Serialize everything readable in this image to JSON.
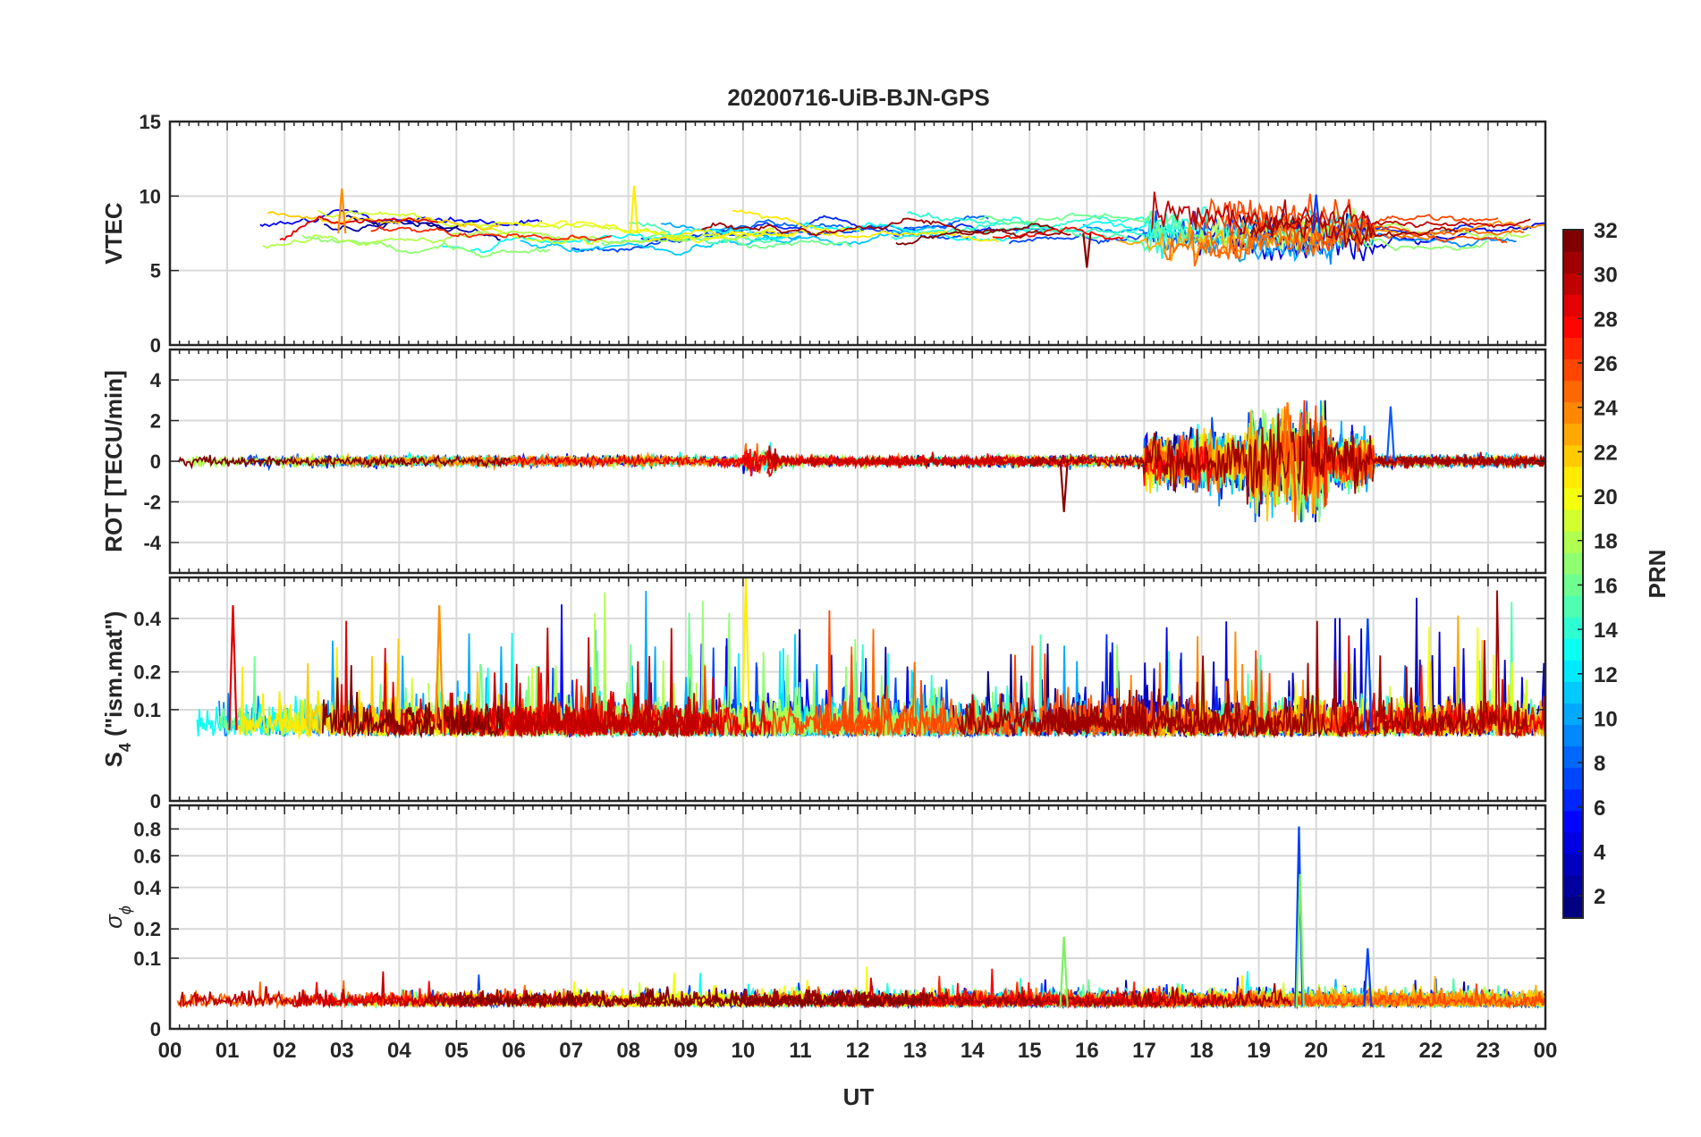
{
  "figure": {
    "title": "20200716-UiB-BJN-GPS",
    "x_axis": {
      "label": "UT",
      "range_hours": [
        0,
        24
      ],
      "tick_labels": [
        "00",
        "01",
        "02",
        "03",
        "04",
        "05",
        "06",
        "07",
        "08",
        "09",
        "10",
        "11",
        "12",
        "13",
        "14",
        "15",
        "16",
        "17",
        "18",
        "19",
        "20",
        "21",
        "22",
        "23",
        "00"
      ]
    },
    "colorbar": {
      "label": "PRN",
      "range": [
        1,
        32
      ],
      "tick_labels": [
        "2",
        "4",
        "6",
        "8",
        "10",
        "12",
        "14",
        "16",
        "18",
        "20",
        "22",
        "24",
        "26",
        "28",
        "30",
        "32"
      ],
      "colormap": "jet"
    }
  },
  "chart_data": [
    {
      "type": "line",
      "panel": "vtec",
      "ylabel": "VTEC",
      "ylim": [
        0,
        15
      ],
      "yticks": [
        "0",
        "5",
        "10",
        "15"
      ],
      "grid": true,
      "series_count": 32,
      "typical_range": [
        5,
        10.5
      ],
      "features": [
        {
          "x_hours": 3.0,
          "y": 10.5,
          "note": "orange peak"
        },
        {
          "x_hours": 8.1,
          "y": 10.7,
          "note": "yellow-green arc start"
        },
        {
          "x_hours": 16.0,
          "y": 5.2,
          "note": "dark red dip"
        },
        {
          "x_hours": 20.0,
          "y": 10.1,
          "note": "blue peak"
        }
      ]
    },
    {
      "type": "line",
      "panel": "rot",
      "ylabel": "ROT [TECU/min]",
      "ylim": [
        -5.5,
        5.5
      ],
      "yticks": [
        "-4",
        "-2",
        "0",
        "2",
        "4"
      ],
      "grid": true,
      "series_count": 32,
      "features": [
        {
          "x_hours": 19.5,
          "y": 2.9,
          "note": "max spike"
        },
        {
          "x_hours": 19.7,
          "y": -2.9,
          "note": "min spike"
        },
        {
          "x_hours": 15.6,
          "y": -2.5,
          "note": "negative spike"
        },
        {
          "x_hours": 21.3,
          "y": 2.7,
          "note": "spike"
        }
      ]
    },
    {
      "type": "line",
      "panel": "s4",
      "ylabel_main": "S",
      "ylabel_sub": "4",
      "ylabel_rest": " (\"ism.mat\")",
      "yscale": "log-like",
      "ylim": [
        0,
        0.6
      ],
      "yticks": [
        "0",
        "0.1",
        "0.2",
        "0.4"
      ],
      "grid": true,
      "series_count": 32,
      "features": [
        {
          "x_hours": 10.05,
          "y": 0.6,
          "note": "yellow max"
        },
        {
          "x_hours": 1.1,
          "y": 0.46,
          "note": "red peak"
        },
        {
          "x_hours": 4.7,
          "y": 0.46,
          "note": "orange peak"
        },
        {
          "x_hours": 20.9,
          "y": 0.4,
          "note": "blue peak"
        }
      ]
    },
    {
      "type": "line",
      "panel": "sigma_phi",
      "ylabel_main": "σ",
      "ylabel_sub": "ϕ",
      "yscale": "log-like",
      "ylim": [
        0,
        1.0
      ],
      "yticks": [
        "0",
        "0.1",
        "0.2",
        "0.4",
        "0.6",
        "0.8"
      ],
      "grid": true,
      "series_count": 32,
      "features": [
        {
          "x_hours": 19.7,
          "y": 0.82,
          "note": "blue spike"
        },
        {
          "x_hours": 19.72,
          "y": 0.48,
          "note": "green spike"
        },
        {
          "x_hours": 15.6,
          "y": 0.17,
          "note": "green spike"
        },
        {
          "x_hours": 20.9,
          "y": 0.13,
          "note": "blue spike"
        }
      ]
    }
  ]
}
